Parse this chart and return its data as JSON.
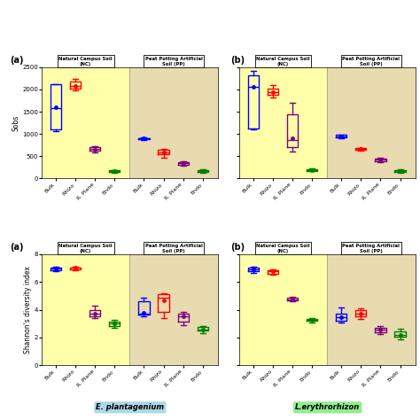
{
  "categories": [
    "Bulk",
    "Rhizo",
    "R. Plane",
    "Endo"
  ],
  "box_colors": [
    "blue",
    "red",
    "purple",
    "green"
  ],
  "sobs_data": {
    "EP_NC": {
      "Bulk": {
        "whislo": 1070,
        "q1": 1100,
        "med": 1580,
        "q3": 2120,
        "whishi": 2120,
        "mean": 1600
      },
      "Rhizo": {
        "whislo": 1980,
        "q1": 2020,
        "med": 2080,
        "q3": 2180,
        "whishi": 2230,
        "mean": 2080
      },
      "R. Plane": {
        "whislo": 580,
        "q1": 620,
        "med": 660,
        "q3": 710,
        "whishi": 730,
        "mean": 650
      },
      "Endo": {
        "whislo": 130,
        "q1": 145,
        "med": 165,
        "q3": 185,
        "whishi": 195,
        "mean": 160
      }
    },
    "EP_PP": {
      "Bulk": {
        "whislo": 870,
        "q1": 880,
        "med": 900,
        "q3": 910,
        "whishi": 920,
        "mean": 900
      },
      "Rhizo": {
        "whislo": 470,
        "q1": 540,
        "med": 590,
        "q3": 640,
        "whishi": 670,
        "mean": 590
      },
      "R. Plane": {
        "whislo": 290,
        "q1": 310,
        "med": 340,
        "q3": 370,
        "whishi": 390,
        "mean": 340
      },
      "Endo": {
        "whislo": 130,
        "q1": 150,
        "med": 170,
        "q3": 190,
        "whishi": 200,
        "mean": 170
      }
    },
    "LE_NC": {
      "Bulk": {
        "whislo": 1110,
        "q1": 1120,
        "med": 2060,
        "q3": 2310,
        "whishi": 2420,
        "mean": 2050
      },
      "Rhizo": {
        "whislo": 1830,
        "q1": 1870,
        "med": 1940,
        "q3": 2020,
        "whishi": 2090,
        "mean": 1940
      },
      "R. Plane": {
        "whislo": 610,
        "q1": 700,
        "med": 870,
        "q3": 1440,
        "whishi": 1700,
        "mean": 900
      },
      "Endo": {
        "whislo": 165,
        "q1": 175,
        "med": 195,
        "q3": 210,
        "whishi": 220,
        "mean": 195
      }
    },
    "LE_PP": {
      "Bulk": {
        "whislo": 900,
        "q1": 920,
        "med": 950,
        "q3": 975,
        "whishi": 985,
        "mean": 950
      },
      "Rhizo": {
        "whislo": 620,
        "q1": 640,
        "med": 660,
        "q3": 680,
        "whishi": 695,
        "mean": 660
      },
      "R. Plane": {
        "whislo": 370,
        "q1": 390,
        "med": 420,
        "q3": 445,
        "whishi": 460,
        "mean": 420
      },
      "Endo": {
        "whislo": 130,
        "q1": 145,
        "med": 165,
        "q3": 185,
        "whishi": 200,
        "mean": 165
      }
    }
  },
  "shannon_data": {
    "EP_NC": {
      "Bulk": {
        "whislo": 6.8,
        "q1": 6.85,
        "med": 6.95,
        "q3": 7.05,
        "whishi": 7.1,
        "mean": 6.95
      },
      "Rhizo": {
        "whislo": 6.85,
        "q1": 6.9,
        "med": 7.0,
        "q3": 7.05,
        "whishi": 7.1,
        "mean": 7.0
      },
      "R. Plane": {
        "whislo": 3.4,
        "q1": 3.55,
        "med": 3.75,
        "q3": 3.95,
        "whishi": 4.3,
        "mean": 3.75
      },
      "Endo": {
        "whislo": 2.7,
        "q1": 2.85,
        "med": 3.0,
        "q3": 3.15,
        "whishi": 3.3,
        "mean": 3.0
      }
    },
    "EP_PP": {
      "Bulk": {
        "whislo": 3.55,
        "q1": 3.65,
        "med": 3.75,
        "q3": 4.6,
        "whishi": 4.85,
        "mean": 3.8
      },
      "Rhizo": {
        "whislo": 3.4,
        "q1": 3.85,
        "med": 4.85,
        "q3": 5.1,
        "whishi": 5.2,
        "mean": 4.7
      },
      "R. Plane": {
        "whislo": 2.9,
        "q1": 3.15,
        "med": 3.5,
        "q3": 3.75,
        "whishi": 3.85,
        "mean": 3.5
      },
      "Endo": {
        "whislo": 2.3,
        "q1": 2.5,
        "med": 2.6,
        "q3": 2.75,
        "whishi": 2.85,
        "mean": 2.6
      }
    },
    "LE_NC": {
      "Bulk": {
        "whislo": 6.65,
        "q1": 6.75,
        "med": 6.9,
        "q3": 7.05,
        "whishi": 7.1,
        "mean": 6.9
      },
      "Rhizo": {
        "whislo": 6.55,
        "q1": 6.6,
        "med": 6.75,
        "q3": 6.85,
        "whishi": 6.9,
        "mean": 6.75
      },
      "R. Plane": {
        "whislo": 4.6,
        "q1": 4.65,
        "med": 4.75,
        "q3": 4.85,
        "whishi": 4.9,
        "mean": 4.75
      },
      "Endo": {
        "whislo": 3.1,
        "q1": 3.2,
        "med": 3.3,
        "q3": 3.35,
        "whishi": 3.4,
        "mean": 3.3
      }
    },
    "LE_PP": {
      "Bulk": {
        "whislo": 3.05,
        "q1": 3.2,
        "med": 3.45,
        "q3": 3.75,
        "whishi": 4.15,
        "mean": 3.45
      },
      "Rhizo": {
        "whislo": 3.35,
        "q1": 3.55,
        "med": 3.75,
        "q3": 3.95,
        "whishi": 4.1,
        "mean": 3.75
      },
      "R. Plane": {
        "whislo": 2.25,
        "q1": 2.35,
        "med": 2.55,
        "q3": 2.7,
        "whishi": 2.85,
        "mean": 2.55
      },
      "Endo": {
        "whislo": 1.85,
        "q1": 2.05,
        "med": 2.2,
        "q3": 2.45,
        "whishi": 2.65,
        "mean": 2.2
      }
    }
  },
  "nc_bg": "#ffffaa",
  "pp_bg": "#e8dbb0",
  "ep_label_bg": "#add8e6",
  "le_label_bg": "#90ee90"
}
